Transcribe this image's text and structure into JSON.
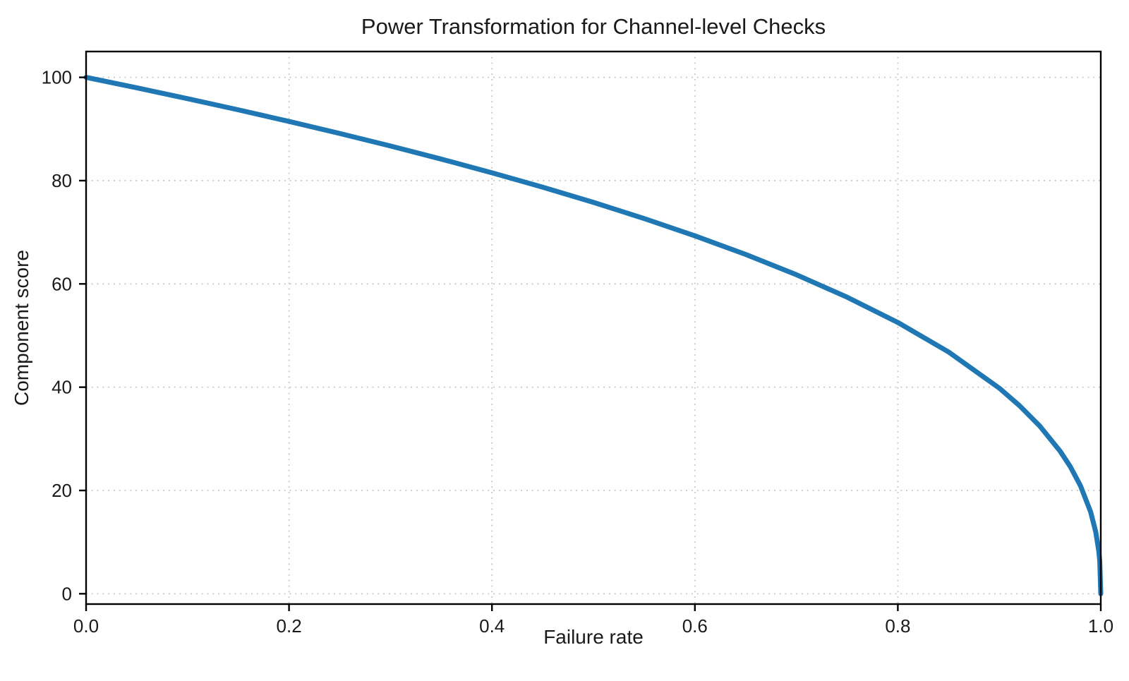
{
  "chart": {
    "title": "Power Transformation for Channel-level Checks",
    "xlabel": "Failure rate",
    "ylabel": "Component score"
  },
  "chart_data": {
    "type": "line",
    "title": "Power Transformation for Channel-level Checks",
    "xlabel": "Failure rate",
    "ylabel": "Component score",
    "xlim": [
      0.0,
      1.0
    ],
    "ylim": [
      -2,
      105
    ],
    "xticks": [
      0.0,
      0.2,
      0.4,
      0.6,
      0.8,
      1.0
    ],
    "xtick_labels": [
      "0.0",
      "0.2",
      "0.4",
      "0.6",
      "0.8",
      "1.0"
    ],
    "yticks": [
      0,
      20,
      40,
      60,
      80,
      100
    ],
    "ytick_labels": [
      "0",
      "20",
      "40",
      "60",
      "80",
      "100"
    ],
    "grid": true,
    "grid_style": "dotted",
    "grid_color": "#c4c4c4",
    "line_color": "#1f77b4",
    "line_width": 7,
    "spine_color": "#000000",
    "legend": null,
    "series": [
      {
        "name": "component-score-vs-failure-rate",
        "x": [
          0.0,
          0.05,
          0.1,
          0.15,
          0.2,
          0.25,
          0.3,
          0.35,
          0.4,
          0.45,
          0.5,
          0.55,
          0.6,
          0.65,
          0.7,
          0.75,
          0.8,
          0.85,
          0.9,
          0.92,
          0.94,
          0.96,
          0.97,
          0.98,
          0.99,
          0.995,
          0.998,
          0.999,
          1.0
        ],
        "y": [
          100.0,
          97.97,
          95.87,
          93.71,
          91.46,
          89.13,
          86.7,
          84.17,
          81.52,
          78.73,
          75.79,
          72.66,
          69.31,
          65.71,
          61.78,
          57.43,
          52.53,
          46.82,
          39.81,
          36.41,
          32.45,
          27.59,
          24.6,
          20.91,
          15.85,
          12.01,
          8.33,
          6.31,
          0.0
        ]
      }
    ]
  }
}
